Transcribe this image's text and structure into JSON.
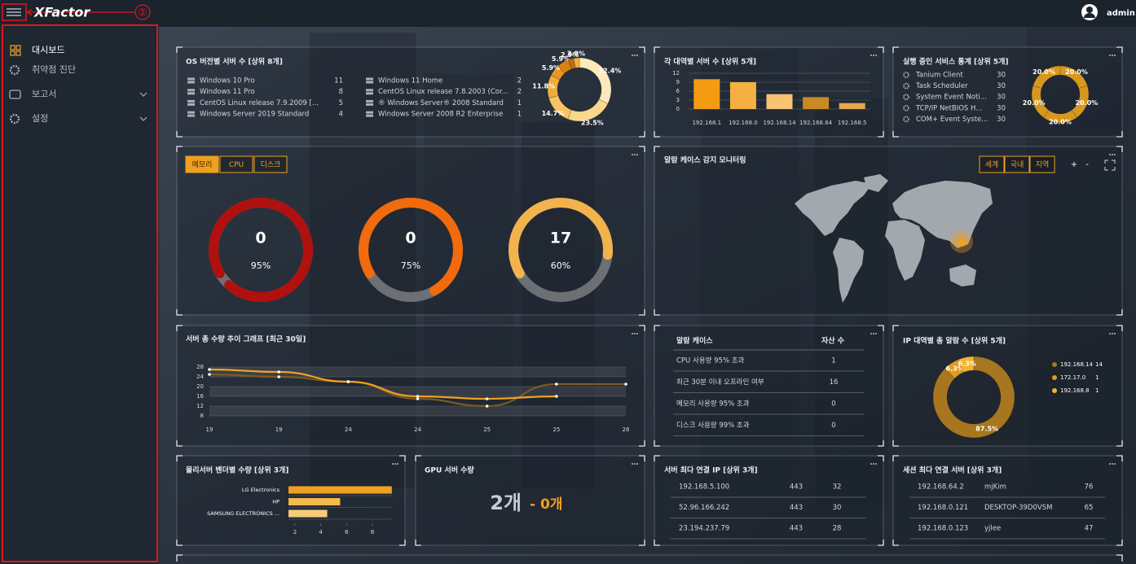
{
  "header": {
    "logo": "XFactor",
    "annotation": "②",
    "user": "admin"
  },
  "sidebar": {
    "items": [
      {
        "label": "대시보드"
      },
      {
        "label": "취약점 진단"
      },
      {
        "label": "보고서"
      },
      {
        "label": "설정"
      }
    ]
  },
  "os_versions": {
    "title": "OS 버전별 서버 수 [상위 8개]",
    "rows": [
      [
        "Windows 10 Pro",
        11
      ],
      [
        "Windows 11 Pro",
        8
      ],
      [
        "CentOS Linux release 7.9.2009 [...",
        5
      ],
      [
        "Windows Server 2019 Standard",
        4
      ],
      [
        "Windows 11 Home",
        2
      ],
      [
        "CentOS Linux release 7.8.2003 (Cor...",
        2
      ],
      [
        "® Windows Server® 2008 Standard",
        1
      ],
      [
        "Windows Server 2008 R2 Enterprise",
        1
      ]
    ],
    "chart": {
      "type": "pie",
      "values": [
        32.4,
        23.5,
        14.7,
        11.8,
        5.9,
        5.9,
        2.9,
        2.9
      ],
      "value_labels": [
        "32.4%",
        "23.5%",
        "14.7%",
        "11.8%",
        "5.9%",
        "5.9%",
        "2.9%",
        "2.9%"
      ],
      "colors": [
        "#fde9b9",
        "#f9d88d",
        "#f6c462",
        "#f1ad3c",
        "#e8961f",
        "#d98212",
        "#c06d0c",
        "#f3b13e"
      ]
    }
  },
  "subnets": {
    "title": "각 대역별 서버 수 [상위 5개]",
    "chart": {
      "type": "bar",
      "categories": [
        "192.168.1",
        "192.168.0",
        "192.168.14",
        "192.168.64",
        "192.168.5"
      ],
      "values": [
        10,
        9,
        5,
        4,
        2
      ],
      "colors": [
        "#f39c12",
        "#f5b041",
        "#f8c471",
        "#c98a22",
        "#e8a748"
      ],
      "ylim": [
        0,
        12
      ],
      "yticks": [
        0,
        3,
        6,
        9,
        12
      ],
      "grid": true
    }
  },
  "services": {
    "title": "실행 중인 서비스 통계 [상위 5개]",
    "rows": [
      [
        "Tanium Client",
        30
      ],
      [
        "Task Scheduler",
        30
      ],
      [
        "System Event Noti...",
        30
      ],
      [
        "TCP/IP NetBIOS H...",
        30
      ],
      [
        "COM+ Event Syste...",
        30
      ]
    ],
    "chart": {
      "type": "pie",
      "values": [
        20,
        20,
        20,
        20,
        20
      ],
      "value_labels": [
        "20.0%",
        "20.0%",
        "20.0%",
        "20.0%",
        "20.0%"
      ],
      "colors": [
        "#d8981e",
        "#d8981e",
        "#d8981e",
        "#d8981e",
        "#d8981e"
      ]
    }
  },
  "resources": {
    "tabs": [
      "메모리",
      "CPU",
      "디스크"
    ],
    "gauges": {
      "type": "gauge",
      "values": [
        95,
        75,
        60
      ],
      "value_labels": [
        "95%",
        "75%",
        "60%"
      ],
      "counts": [
        0,
        0,
        17
      ],
      "colors": [
        "#b0100e",
        "#f26a0c",
        "#f2b24c"
      ]
    }
  },
  "map": {
    "title": "알람 케이스 감지 모니터링",
    "buttons": [
      "세계",
      "국내",
      "지역"
    ],
    "zoom": [
      "+",
      "-"
    ]
  },
  "trend": {
    "title": "서버 총 수량 추이 그래프 [최근 30일]",
    "chart": {
      "type": "line",
      "categories": [
        "19",
        "19",
        "24",
        "24",
        "25",
        "25",
        "26"
      ],
      "series": [
        {
          "color": "#f2a21e",
          "values": [
            27,
            26,
            22,
            16,
            15,
            16,
            null
          ]
        },
        {
          "color": "#7d5a22",
          "values": [
            25,
            24,
            22,
            15,
            12,
            21,
            21
          ]
        }
      ],
      "ylim": [
        8,
        28
      ],
      "yticks": [
        8,
        12,
        16,
        20,
        24,
        28
      ],
      "grid": true
    }
  },
  "alarm_cases": {
    "headers": [
      "알람 케이스",
      "자산 수"
    ],
    "rows": [
      [
        "CPU 사용량 95% 초과",
        1
      ],
      [
        "최근 30분 이내 오프라인 여부",
        16
      ],
      [
        "메모리 사용량 95% 초과",
        0
      ],
      [
        "디스크 사용량 99% 초과",
        0
      ]
    ]
  },
  "ip_alarms": {
    "title": "IP 대역별 총 알람 수 [상위 5개]",
    "chart": {
      "type": "pie",
      "categories": [
        "192.168.14",
        "172.17.0",
        "192.168.8"
      ],
      "values": [
        87.5,
        6.3,
        6.3
      ],
      "value_labels": [
        "87.5%",
        "6.3%",
        "6.3%"
      ],
      "counts": [
        14,
        1,
        1
      ],
      "colors": [
        "#a8761f",
        "#e39a1d",
        "#f2b430"
      ]
    }
  },
  "vendors": {
    "title": "물리서버 벤더별 수량 [상위 3개]",
    "chart": {
      "type": "bar",
      "orientation": "horizontal",
      "categories": [
        "LG Electronics",
        "HP",
        "SAMSUNG ELECTRONICS ..."
      ],
      "values": [
        9.5,
        5.5,
        4.5
      ],
      "colors": [
        "#f0a020",
        "#f5b84a",
        "#f8cc7a"
      ],
      "xlim": [
        1.5,
        9.5
      ],
      "xticks": [
        2,
        4,
        6,
        8
      ]
    }
  },
  "gpu": {
    "title": "GPU 서버 수량",
    "count": "2개",
    "change": "- 0개"
  },
  "connections": {
    "title": "서버 최다 연결 IP [상위 3개]",
    "rows": [
      [
        "192.168.5.100",
        443,
        32
      ],
      [
        "52.96.166.242",
        443,
        30
      ],
      [
        "23.194.237.79",
        443,
        28
      ]
    ]
  },
  "sessions": {
    "title": "세션 최다 연결 서버 [상위 3개]",
    "rows": [
      [
        "192.168.64.2",
        "mjKim",
        76
      ],
      [
        "192.168.0.121",
        "DESKTOP-39D0VSM",
        65
      ],
      [
        "192.168.0.123",
        "yjlee",
        47
      ]
    ]
  }
}
